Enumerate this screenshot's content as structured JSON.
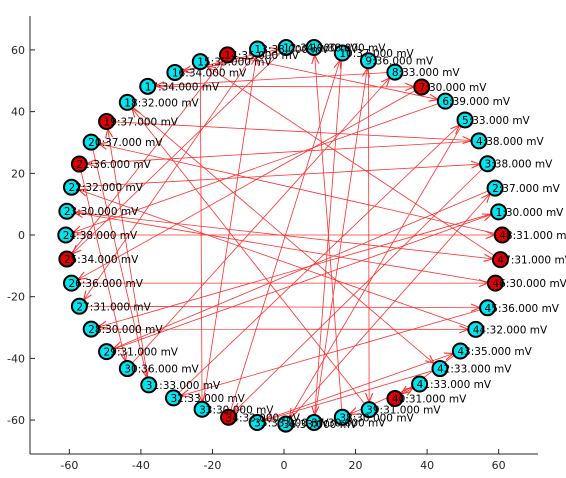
{
  "chart_data": {
    "type": "scatter",
    "title": "",
    "xlabel": "",
    "ylabel": "",
    "xlim": [
      -71,
      71
    ],
    "ylim": [
      -71,
      71
    ],
    "xticks": [
      -60,
      -40,
      -20,
      0,
      20,
      40,
      60
    ],
    "yticks": [
      -60,
      -40,
      -20,
      0,
      20,
      40,
      60
    ],
    "grid": false,
    "colors": {
      "normal": "#00e5ee",
      "active": "#e00000",
      "edge": "#ff3030",
      "outline": "#000000",
      "axis": "#262626"
    },
    "nodes": [
      {
        "id": "1",
        "label": "1",
        "value": ":30.000 mV",
        "active": false,
        "x": 60.0,
        "y": 7.5
      },
      {
        "id": "2",
        "label": "2",
        "value": ":37.000 mV",
        "active": false,
        "x": 59.0,
        "y": 15.2
      },
      {
        "id": "3",
        "label": "3",
        "value": ":38.000 mV",
        "active": false,
        "x": 56.9,
        "y": 23.1
      },
      {
        "id": "4",
        "label": "4",
        "value": ":38.000 mV",
        "active": false,
        "x": 54.5,
        "y": 30.5
      },
      {
        "id": "5",
        "label": "5",
        "value": ":33.000 mV",
        "active": false,
        "x": 50.6,
        "y": 37.3
      },
      {
        "id": "6",
        "label": "6",
        "value": ":39.000 mV",
        "active": false,
        "x": 45.1,
        "y": 43.4
      },
      {
        "id": "7",
        "label": "7",
        "value": ":30.000 mV",
        "active": true,
        "x": 38.5,
        "y": 48.0
      },
      {
        "id": "8",
        "label": "8",
        "value": ":33.000 mV",
        "active": false,
        "x": 31.0,
        "y": 52.8
      },
      {
        "id": "9",
        "label": "9",
        "value": ":36.000 mV",
        "active": false,
        "x": 23.6,
        "y": 56.5
      },
      {
        "id": "10",
        "label": "10",
        "value": ":37.000 mV",
        "active": false,
        "x": 16.3,
        "y": 59.0
      },
      {
        "id": "11",
        "label": "11",
        "value": ":38.000 mV",
        "active": false,
        "x": 8.4,
        "y": 60.8
      },
      {
        "id": "12",
        "label": "12",
        "value": ":34.000 mV",
        "active": false,
        "x": 0.6,
        "y": 60.8
      },
      {
        "id": "13",
        "label": "13",
        "value": ":38.000 mV",
        "active": false,
        "x": -7.4,
        "y": 60.3
      },
      {
        "id": "14",
        "label": "14",
        "value": ":35.000 mV",
        "active": true,
        "x": -15.8,
        "y": 58.4
      },
      {
        "id": "15",
        "label": "15",
        "value": ":35.000 mV",
        "active": false,
        "x": -23.4,
        "y": 56.2
      },
      {
        "id": "16",
        "label": "16",
        "value": ":34.000 mV",
        "active": false,
        "x": -30.5,
        "y": 52.7
      },
      {
        "id": "17",
        "label": "17",
        "value": ":34.000 mV",
        "active": false,
        "x": -38.1,
        "y": 48.2
      },
      {
        "id": "18",
        "label": "18",
        "value": ":32.000 mV",
        "active": false,
        "x": -43.8,
        "y": 43.0
      },
      {
        "id": "19",
        "label": "19",
        "value": ":37.000 mV",
        "active": true,
        "x": -49.6,
        "y": 36.8
      },
      {
        "id": "20",
        "label": "20",
        "value": ":37.000 mV",
        "active": false,
        "x": -53.9,
        "y": 30.1
      },
      {
        "id": "21",
        "label": "21",
        "value": ":36.000 mV",
        "active": true,
        "x": -57.2,
        "y": 23.0
      },
      {
        "id": "22",
        "label": "22",
        "value": ":32.000 mV",
        "active": false,
        "x": -59.4,
        "y": 15.5
      },
      {
        "id": "23",
        "label": "23",
        "value": ":30.000 mV",
        "active": false,
        "x": -60.7,
        "y": 7.7
      },
      {
        "id": "24",
        "label": "24",
        "value": ":38.000 mV",
        "active": false,
        "x": -61.0,
        "y": 0.0
      },
      {
        "id": "25",
        "label": "25",
        "value": ":34.000 mV",
        "active": true,
        "x": -60.7,
        "y": -7.8
      },
      {
        "id": "26",
        "label": "26",
        "value": ":36.000 mV",
        "active": false,
        "x": -59.4,
        "y": -15.6
      },
      {
        "id": "27",
        "label": "27",
        "value": ":31.000 mV",
        "active": false,
        "x": -57.2,
        "y": -23.1
      },
      {
        "id": "28",
        "label": "28",
        "value": ":30.000 mV",
        "active": false,
        "x": -53.9,
        "y": -30.5
      },
      {
        "id": "29",
        "label": "29",
        "value": ":31.000 mV",
        "active": false,
        "x": -49.6,
        "y": -37.8
      },
      {
        "id": "30",
        "label": "30",
        "value": ":36.000 mV",
        "active": false,
        "x": -43.8,
        "y": -43.3
      },
      {
        "id": "31",
        "label": "31",
        "value": ":33.000 mV",
        "active": false,
        "x": -37.8,
        "y": -48.6
      },
      {
        "id": "32",
        "label": "32",
        "value": ":33.000 mV",
        "active": false,
        "x": -30.9,
        "y": -52.8
      },
      {
        "id": "33",
        "label": "33",
        "value": ":30.000 mV",
        "active": false,
        "x": -22.9,
        "y": -56.5
      },
      {
        "id": "34",
        "label": "34",
        "value": ":33.000 mV",
        "active": true,
        "x": -15.5,
        "y": -59.1
      },
      {
        "id": "35",
        "label": "35",
        "value": ":33.000 mV",
        "active": false,
        "x": -7.5,
        "y": -60.8
      },
      {
        "id": "36",
        "label": "36",
        "value": ":33.000 mV",
        "active": false,
        "x": 0.5,
        "y": -61.3
      },
      {
        "id": "37",
        "label": "37",
        "value": ":30.000 mV",
        "active": false,
        "x": 8.4,
        "y": -60.8
      },
      {
        "id": "38",
        "label": "38",
        "value": ":30.000 mV",
        "active": false,
        "x": 16.3,
        "y": -59.1
      },
      {
        "id": "39",
        "label": "39",
        "value": ":31.000 mV",
        "active": false,
        "x": 23.8,
        "y": -56.6
      },
      {
        "id": "40",
        "label": "40",
        "value": ":31.000 mV",
        "active": true,
        "x": 31.0,
        "y": -53.0
      },
      {
        "id": "41",
        "label": "41",
        "value": ":33.000 mV",
        "active": false,
        "x": 37.9,
        "y": -48.3
      },
      {
        "id": "42",
        "label": "42",
        "value": ":33.000 mV",
        "active": false,
        "x": 43.6,
        "y": -43.3
      },
      {
        "id": "43",
        "label": "43",
        "value": ":35.000 mV",
        "active": false,
        "x": 49.3,
        "y": -37.6
      },
      {
        "id": "44",
        "label": "44",
        "value": ":32.000 mV",
        "active": false,
        "x": 53.6,
        "y": -30.6
      },
      {
        "id": "45",
        "label": "45",
        "value": ":36.000 mV",
        "active": false,
        "x": 56.9,
        "y": -23.6
      },
      {
        "id": "46",
        "label": "46",
        "value": ":30.000 mV",
        "active": true,
        "x": 59.1,
        "y": -15.6
      },
      {
        "id": "47",
        "label": "47",
        "value": ":31.000 mV",
        "active": true,
        "x": 60.5,
        "y": -8.0
      },
      {
        "id": "48",
        "label": "48",
        "value": ":31.000 mV",
        "active": true,
        "x": 61.0,
        "y": 0.0
      }
    ],
    "edges": [
      {
        "from": "14",
        "to": "6"
      },
      {
        "from": "6",
        "to": "24"
      },
      {
        "from": "24",
        "to": "48"
      },
      {
        "from": "48",
        "to": "20"
      },
      {
        "from": "20",
        "to": "31"
      },
      {
        "from": "31",
        "to": "19"
      },
      {
        "from": "19",
        "to": "4"
      },
      {
        "from": "4",
        "to": "21"
      },
      {
        "from": "21",
        "to": "30"
      },
      {
        "from": "30",
        "to": "8"
      },
      {
        "from": "8",
        "to": "17"
      },
      {
        "from": "17",
        "to": "7"
      },
      {
        "from": "7",
        "to": "26"
      },
      {
        "from": "26",
        "to": "46"
      },
      {
        "from": "46",
        "to": "23"
      },
      {
        "from": "23",
        "to": "47"
      },
      {
        "from": "47",
        "to": "15"
      },
      {
        "from": "15",
        "to": "33"
      },
      {
        "from": "33",
        "to": "13"
      },
      {
        "from": "13",
        "to": "27"
      },
      {
        "from": "27",
        "to": "45"
      },
      {
        "from": "45",
        "to": "32"
      },
      {
        "from": "32",
        "to": "5"
      },
      {
        "from": "5",
        "to": "36"
      },
      {
        "from": "36",
        "to": "2"
      },
      {
        "from": "2",
        "to": "29"
      },
      {
        "from": "29",
        "to": "1"
      },
      {
        "from": "1",
        "to": "28"
      },
      {
        "from": "28",
        "to": "44"
      },
      {
        "from": "44",
        "to": "22"
      },
      {
        "from": "22",
        "to": "3"
      },
      {
        "from": "3",
        "to": "34"
      },
      {
        "from": "34",
        "to": "10"
      },
      {
        "from": "10",
        "to": "37"
      },
      {
        "from": "37",
        "to": "9"
      },
      {
        "from": "9",
        "to": "39"
      },
      {
        "from": "39",
        "to": "18"
      },
      {
        "from": "18",
        "to": "42"
      },
      {
        "from": "42",
        "to": "35"
      },
      {
        "from": "35",
        "to": "43"
      },
      {
        "from": "43",
        "to": "40"
      },
      {
        "from": "40",
        "to": "41"
      },
      {
        "from": "41",
        "to": "38"
      },
      {
        "from": "38",
        "to": "11"
      },
      {
        "from": "11",
        "to": "16"
      },
      {
        "from": "16",
        "to": "12"
      },
      {
        "from": "12",
        "to": "25"
      },
      {
        "from": "25",
        "to": "14"
      }
    ]
  }
}
